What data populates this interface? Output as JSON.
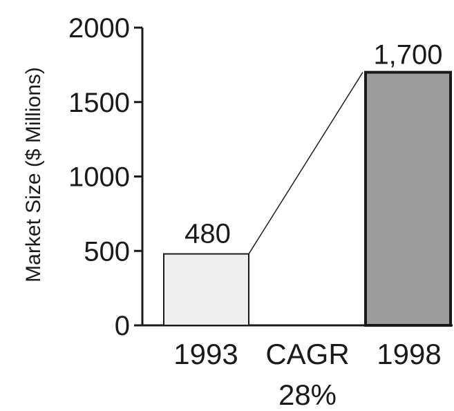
{
  "chart_data": {
    "type": "bar",
    "categories": [
      "1993",
      "1998"
    ],
    "values": [
      480,
      1700
    ],
    "data_labels": [
      "480",
      "1,700"
    ],
    "ylabel": "Market Size ($ Millions)",
    "xlabel": "",
    "ylim": [
      0,
      2000
    ],
    "yticks": [
      0,
      500,
      1000,
      1500,
      2000
    ],
    "ytick_labels": [
      "0",
      "500",
      "1000",
      "1500",
      "2000"
    ],
    "grid": false,
    "annotation": {
      "label": "CAGR",
      "value": "28%"
    },
    "colors": {
      "bar_1993": "#efefef",
      "bar_1998": "#9c9c9c",
      "axis": "#1a1a1a"
    }
  }
}
